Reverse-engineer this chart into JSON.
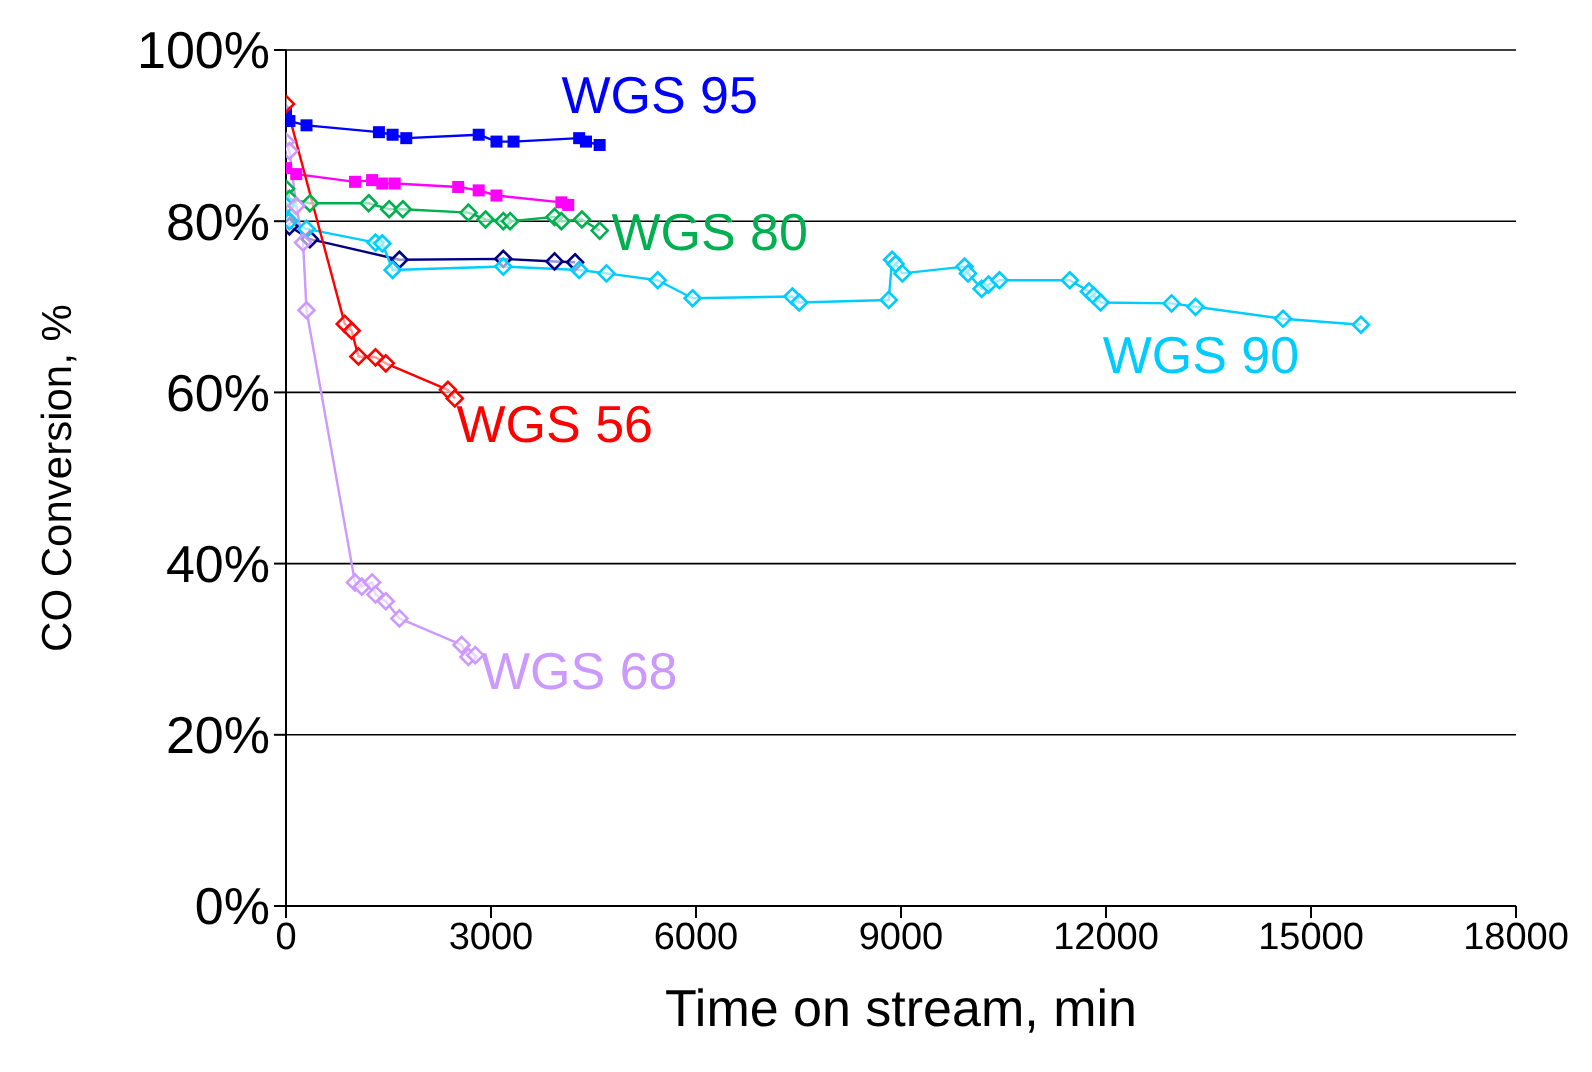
{
  "chart_data": {
    "type": "line",
    "xlabel": "Time on stream, min",
    "ylabel": "CO Conversion, %",
    "xlim": [
      0,
      18000
    ],
    "xticks": [
      0,
      3000,
      6000,
      9000,
      12000,
      15000,
      18000
    ],
    "ylim": [
      0,
      100
    ],
    "yticks": [
      {
        "value": 0,
        "label": "0%"
      },
      {
        "value": 20,
        "label": "20%"
      },
      {
        "value": 40,
        "label": "40%"
      },
      {
        "value": 60,
        "label": "60%"
      },
      {
        "value": 80,
        "label": "80%"
      },
      {
        "value": 100,
        "label": "100%"
      }
    ],
    "grid": "y",
    "legend": false,
    "series": [
      {
        "name": "WGS 95",
        "color": "#0000ff",
        "marker": "square",
        "x": [
          0,
          50,
          300,
          1360,
          1560,
          1760,
          2820,
          3080,
          3330,
          4290,
          4390,
          4590
        ],
        "values": [
          92.7,
          91.7,
          91.2,
          90.4,
          90.1,
          89.7,
          90.1,
          89.3,
          89.3,
          89.7,
          89.3,
          88.9
        ]
      },
      {
        "color": "#ff00ff",
        "marker": "square",
        "x": [
          0,
          150,
          1010,
          1260,
          1410,
          1590,
          2520,
          2820,
          3080,
          4030,
          4130
        ],
        "values": [
          86.2,
          85.5,
          84.6,
          84.8,
          84.4,
          84.4,
          84.0,
          83.6,
          83.0,
          82.2,
          81.9
        ]
      },
      {
        "name": "WGS 80",
        "color": "#00b050",
        "marker": "diamond",
        "x": [
          0,
          50,
          350,
          1210,
          1510,
          1710,
          2670,
          2920,
          3180,
          3280,
          3930,
          4030,
          4330,
          4590
        ],
        "values": [
          83.8,
          82.6,
          82.1,
          82.1,
          81.4,
          81.4,
          81.0,
          80.2,
          80.0,
          80.0,
          80.5,
          80.0,
          80.2,
          78.9
        ]
      },
      {
        "color": "#000080",
        "marker": "diamond",
        "x": [
          0,
          50,
          350,
          1660,
          3180,
          3930,
          4230
        ],
        "values": [
          80.2,
          79.4,
          77.9,
          75.5,
          75.6,
          75.3,
          75.2
        ]
      },
      {
        "name": "WGS 90",
        "color": "#00ccff",
        "marker": "diamond",
        "x": [
          0,
          50,
          300,
          1310,
          1410,
          1560,
          3180,
          4290,
          4690,
          5440,
          5950,
          7410,
          7510,
          8820,
          8870,
          8920,
          9020,
          9930,
          9980,
          10180,
          10280,
          10440,
          11470,
          11750,
          11820,
          11920,
          12960,
          13310,
          14590,
          15730
        ],
        "values": [
          81.8,
          80.0,
          79.1,
          77.5,
          77.4,
          74.3,
          74.7,
          74.3,
          73.9,
          73.1,
          71.0,
          71.2,
          70.5,
          70.8,
          75.5,
          75.0,
          73.9,
          74.7,
          73.9,
          72.1,
          72.6,
          73.1,
          73.1,
          71.8,
          71.3,
          70.5,
          70.4,
          70.0,
          68.6,
          67.9
        ]
      },
      {
        "name": "WGS 56",
        "color": "#ff0000",
        "marker": "diamond",
        "x": [
          0,
          860,
          960,
          1060,
          1310,
          1460,
          2370,
          2470
        ],
        "values": [
          93.7,
          68.0,
          67.2,
          64.2,
          64.1,
          63.4,
          60.3,
          59.3
        ]
      },
      {
        "name": "WGS 68",
        "color": "#cc99ff",
        "marker": "diamond",
        "x": [
          0,
          50,
          150,
          250,
          300,
          1010,
          1110,
          1260,
          1310,
          1460,
          1660,
          2570,
          2670,
          2770
        ],
        "values": [
          89.3,
          88.2,
          81.8,
          77.5,
          69.6,
          37.8,
          37.3,
          37.8,
          36.4,
          35.6,
          33.6,
          30.5,
          29.1,
          29.3
        ]
      }
    ]
  }
}
